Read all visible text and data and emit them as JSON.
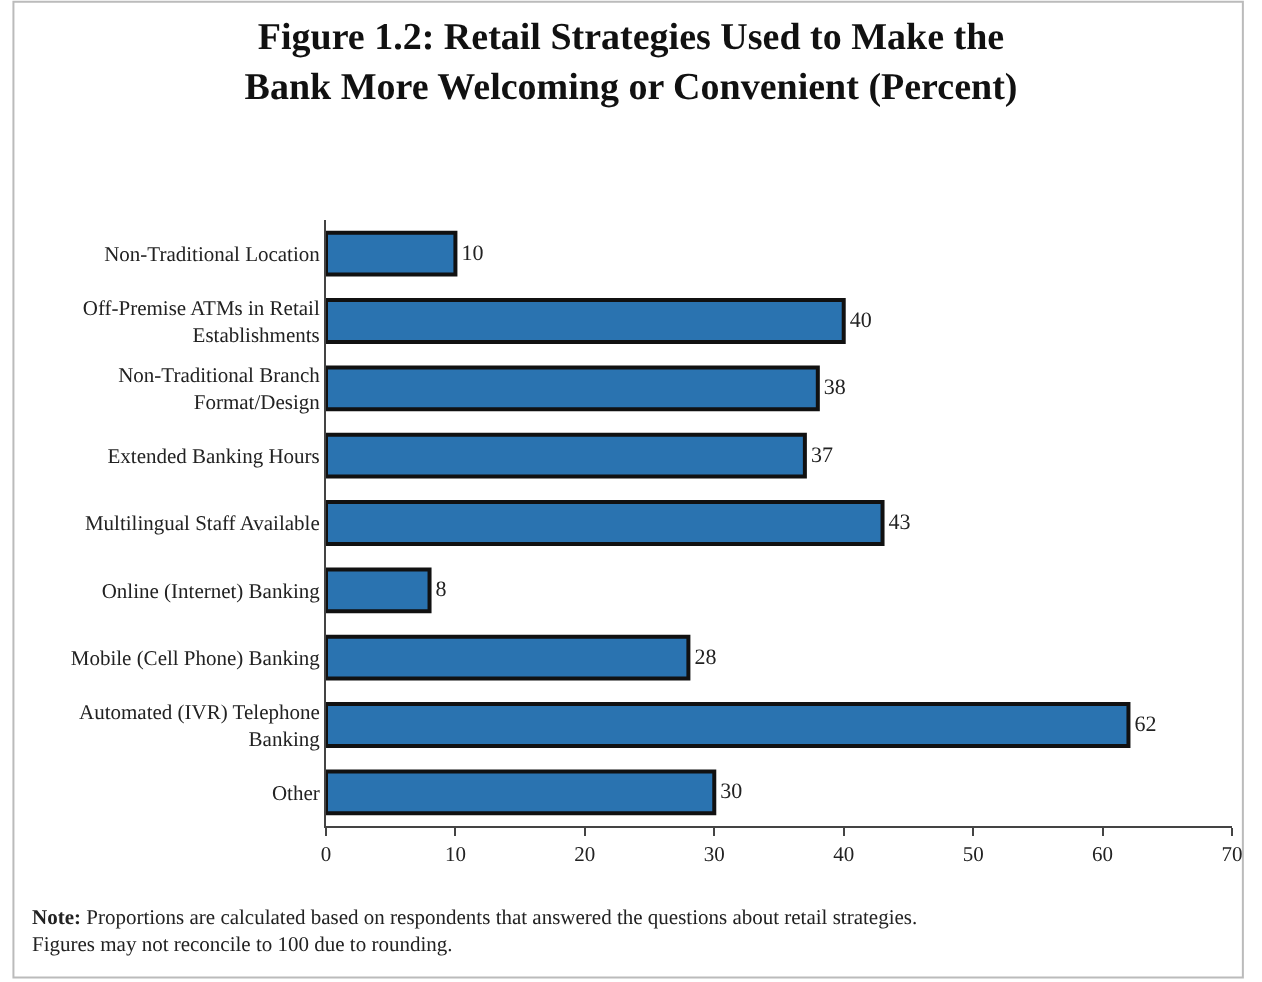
{
  "chart_data": {
    "type": "bar",
    "orientation": "horizontal",
    "title": "Figure 1.2: Retail Strategies Used to Make the Bank More Welcoming or Convenient (Percent)",
    "categories": [
      "Non-Traditional Location",
      "Off-Premise ATMs in Retail Establishments",
      "Non-Traditional Branch Format/Design",
      "Extended Banking Hours",
      "Multilingual Staff Available",
      "Online (Internet) Banking",
      "Mobile (Cell Phone) Banking",
      "Automated (IVR) Telephone Banking",
      "Other"
    ],
    "values": [
      10,
      40,
      38,
      37,
      43,
      8,
      28,
      62,
      30
    ],
    "color": "#2a73b0",
    "data_labels": true,
    "xlim": [
      0,
      70
    ],
    "xticks": [
      0,
      10,
      20,
      30,
      40,
      50,
      60,
      70
    ],
    "legend": false,
    "annotations": [
      "Note: Proportions are calculated based on respondents that answered the questions about retail strategies. Figures may not reconcile to 100 due to rounding."
    ]
  }
}
